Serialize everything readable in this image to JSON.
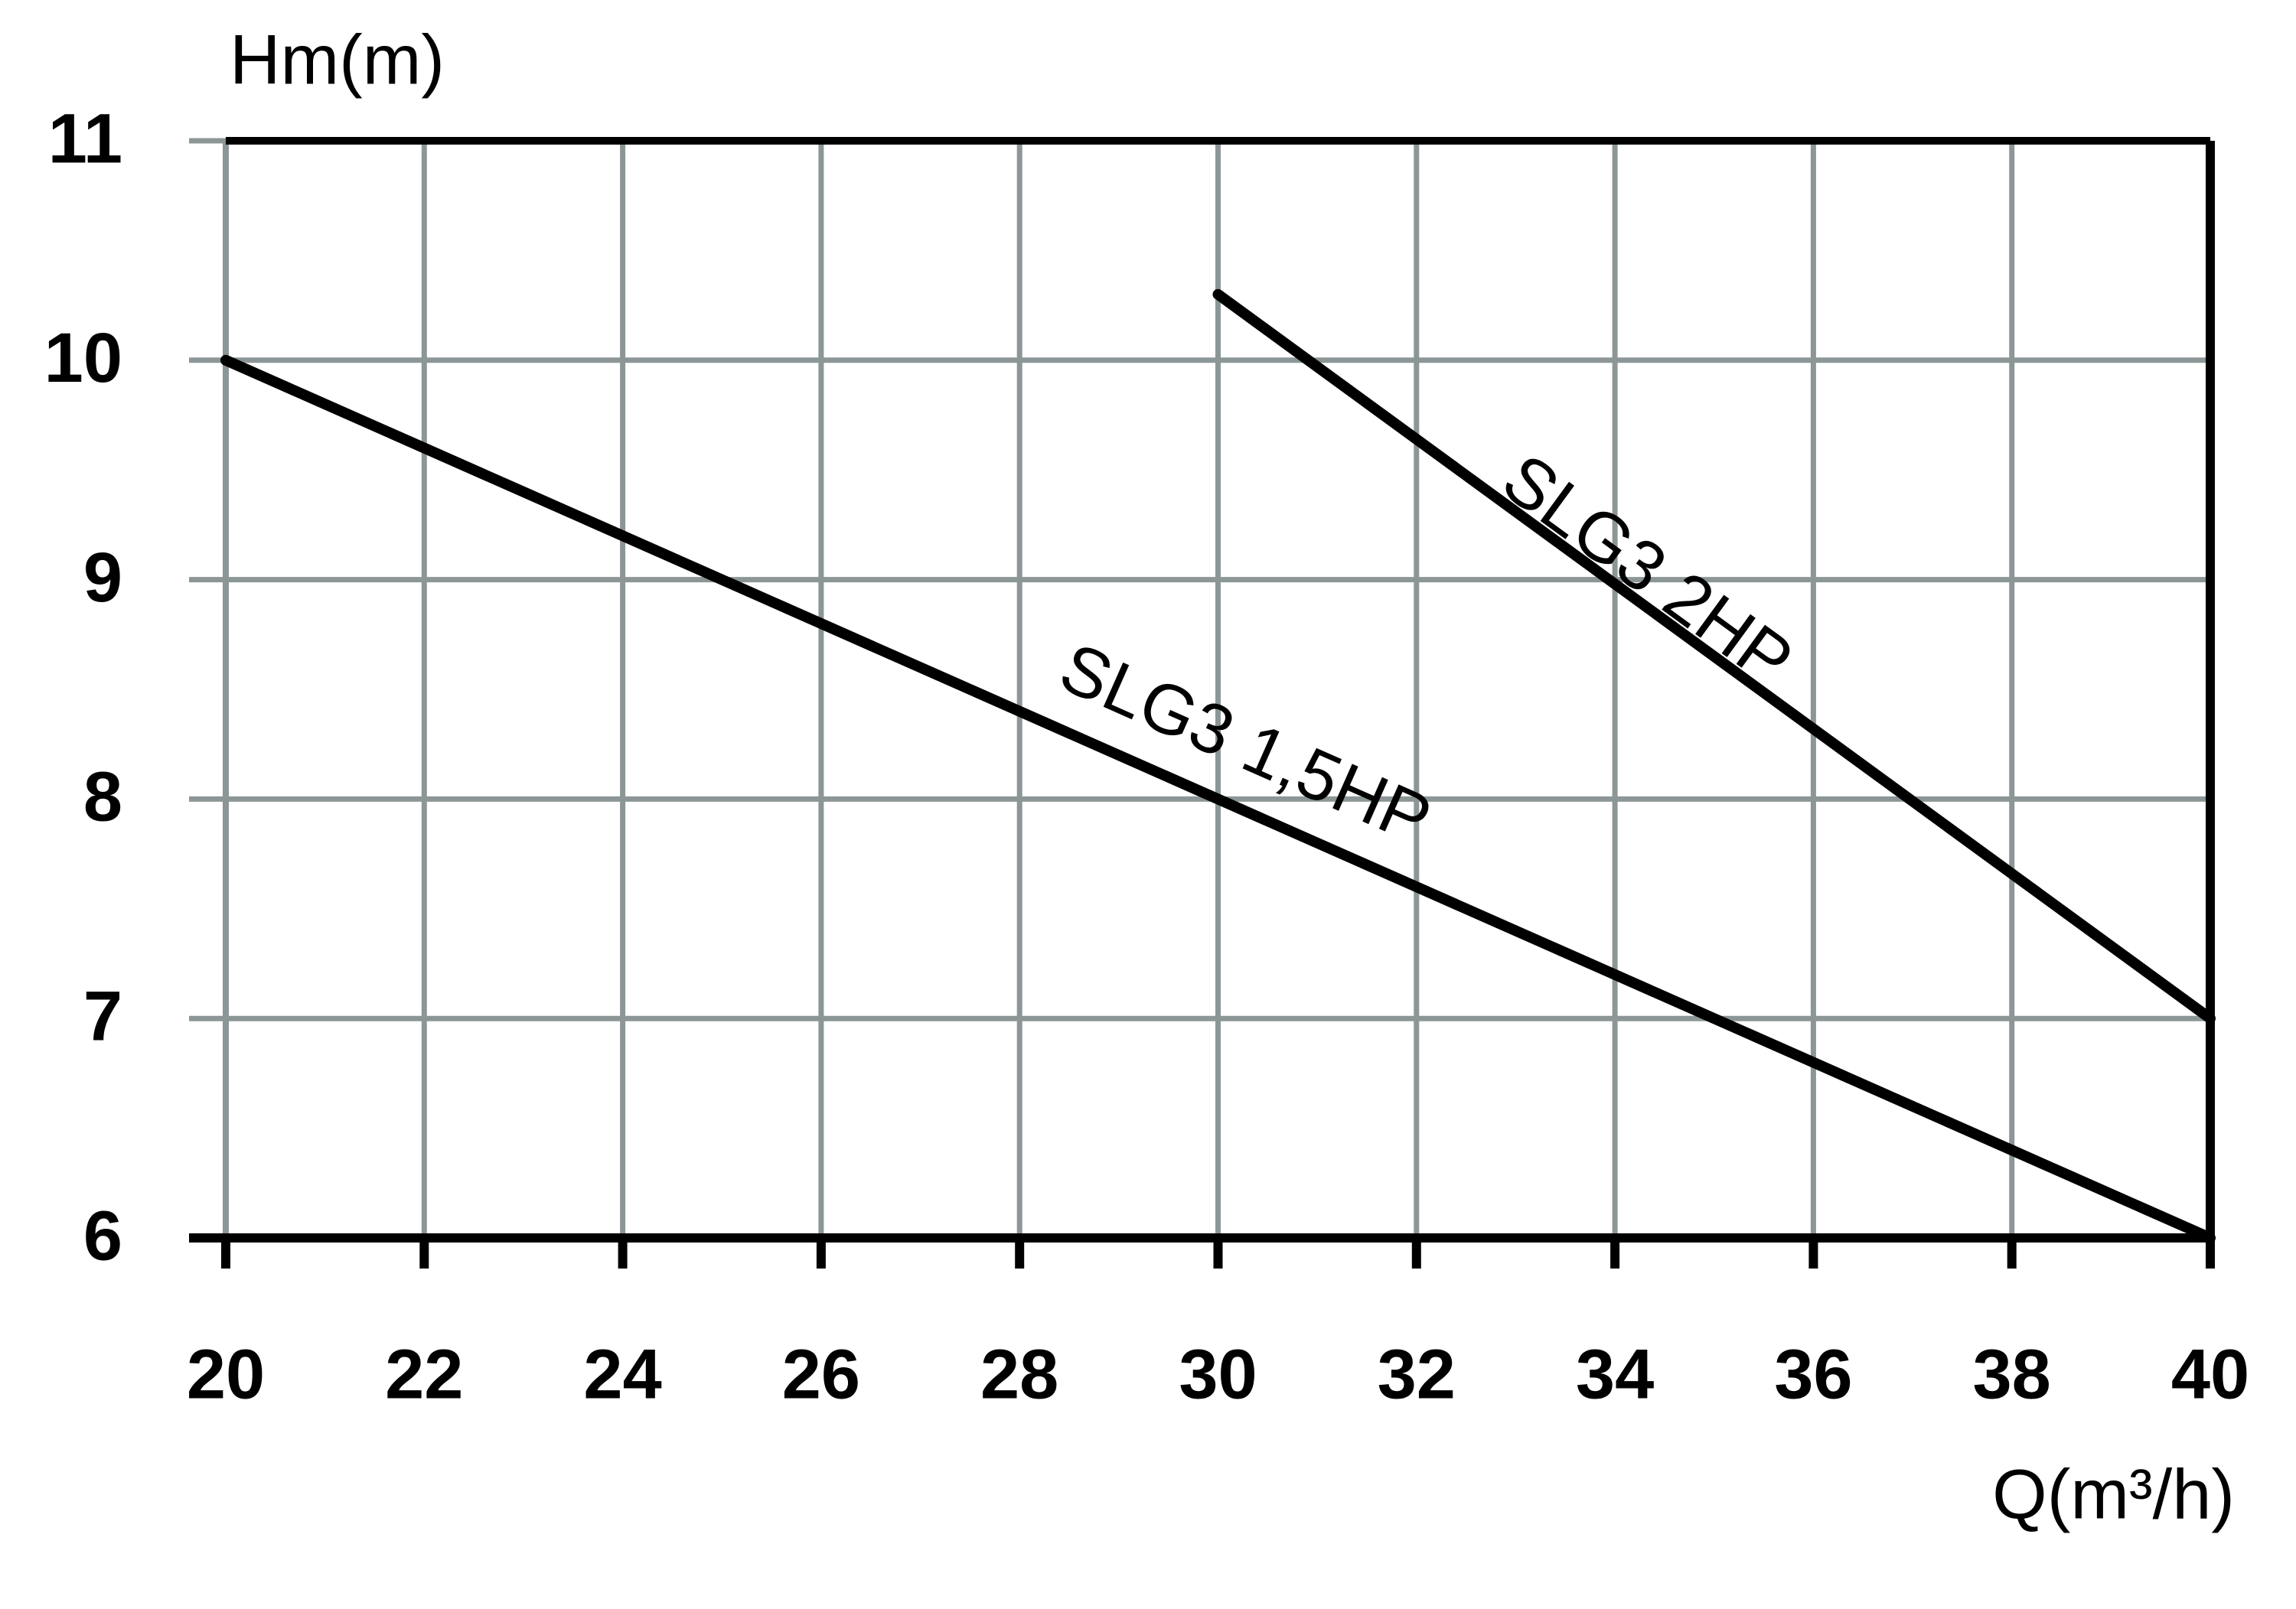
{
  "chart_data": {
    "type": "line",
    "y_label": "Hm(m)",
    "x_label": "Q(m³/h)",
    "xlim": [
      20,
      40
    ],
    "ylim": [
      6,
      11
    ],
    "xticks": [
      20,
      22,
      24,
      26,
      28,
      30,
      32,
      34,
      36,
      38,
      40
    ],
    "yticks": [
      6,
      7,
      8,
      9,
      10,
      11
    ],
    "grid": true,
    "series": [
      {
        "name": "SLG3 1,5HP",
        "color": "#000000",
        "x": [
          20,
          40
        ],
        "values": [
          10,
          6
        ]
      },
      {
        "name": "SLG3 2HP",
        "color": "#000000",
        "x": [
          30,
          40
        ],
        "values": [
          10.3,
          7
        ]
      }
    ]
  }
}
